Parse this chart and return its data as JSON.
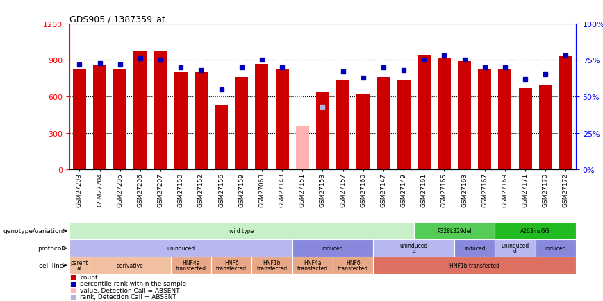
{
  "title": "GDS905 / 1387359_at",
  "samples": [
    "GSM27203",
    "GSM27204",
    "GSM27205",
    "GSM27206",
    "GSM27207",
    "GSM27150",
    "GSM27152",
    "GSM27156",
    "GSM27159",
    "GSM27063",
    "GSM27148",
    "GSM27151",
    "GSM27153",
    "GSM27157",
    "GSM27160",
    "GSM27147",
    "GSM27149",
    "GSM27161",
    "GSM27165",
    "GSM27163",
    "GSM27167",
    "GSM27169",
    "GSM27171",
    "GSM27170",
    "GSM27172"
  ],
  "count_values": [
    820,
    860,
    820,
    970,
    970,
    800,
    800,
    530,
    760,
    870,
    820,
    360,
    640,
    740,
    620,
    760,
    730,
    940,
    920,
    890,
    820,
    820,
    670,
    700,
    930
  ],
  "rank_values": [
    72,
    73,
    72,
    76,
    75,
    70,
    68,
    55,
    70,
    75,
    70,
    null,
    null,
    67,
    63,
    70,
    68,
    75,
    78,
    75,
    70,
    70,
    62,
    65,
    78
  ],
  "absent_count": [
    null,
    null,
    null,
    null,
    null,
    null,
    null,
    null,
    null,
    null,
    null,
    360,
    null,
    null,
    null,
    null,
    null,
    null,
    null,
    null,
    null,
    null,
    null,
    null,
    null
  ],
  "absent_rank": [
    null,
    null,
    null,
    null,
    null,
    null,
    null,
    null,
    null,
    null,
    null,
    null,
    43,
    null,
    null,
    null,
    null,
    null,
    null,
    null,
    null,
    null,
    null,
    null,
    null
  ],
  "ylim_left": [
    0,
    1200
  ],
  "ylim_right": [
    0,
    100
  ],
  "yticks_left": [
    0,
    300,
    600,
    900,
    1200
  ],
  "yticks_right": [
    0,
    25,
    50,
    75,
    100
  ],
  "ytick_labels_left": [
    "0",
    "300",
    "600",
    "900",
    "1200"
  ],
  "ytick_labels_right": [
    "0%",
    "25%",
    "50%",
    "75%",
    "100%"
  ],
  "bar_color": "#cc0000",
  "rank_color": "#0000bb",
  "absent_bar_color": "#ffb3b3",
  "absent_rank_color": "#b3b3dd",
  "plot_bg": "#ffffff",
  "genotype_row": [
    {
      "label": "wild type",
      "start": 0,
      "end": 17,
      "color": "#c8f0c8"
    },
    {
      "label": "P328L329del",
      "start": 17,
      "end": 21,
      "color": "#55cc55"
    },
    {
      "label": "A263insGG",
      "start": 21,
      "end": 25,
      "color": "#22bb22"
    }
  ],
  "protocol_row": [
    {
      "label": "uninduced",
      "start": 0,
      "end": 11,
      "color": "#b8b8f0"
    },
    {
      "label": "induced",
      "start": 11,
      "end": 15,
      "color": "#8888dd"
    },
    {
      "label": "uninduced\nd",
      "start": 15,
      "end": 19,
      "color": "#b8b8f0"
    },
    {
      "label": "induced",
      "start": 19,
      "end": 21,
      "color": "#8888dd"
    },
    {
      "label": "uninduced\nd",
      "start": 21,
      "end": 23,
      "color": "#b8b8f0"
    },
    {
      "label": "induced",
      "start": 23,
      "end": 25,
      "color": "#8888dd"
    }
  ],
  "cell_row": [
    {
      "label": "parent\nal",
      "start": 0,
      "end": 1,
      "color": "#f0c0a0"
    },
    {
      "label": "derivative",
      "start": 1,
      "end": 5,
      "color": "#f0c0a0"
    },
    {
      "label": "HNF4a\ntransfected",
      "start": 5,
      "end": 7,
      "color": "#e8a888"
    },
    {
      "label": "HNF6\ntransfected",
      "start": 7,
      "end": 9,
      "color": "#e8a888"
    },
    {
      "label": "HNF1b\ntransfected",
      "start": 9,
      "end": 11,
      "color": "#e8a888"
    },
    {
      "label": "HNF4a\ntransfected",
      "start": 11,
      "end": 13,
      "color": "#e8a888"
    },
    {
      "label": "HNF6\ntransfected",
      "start": 13,
      "end": 15,
      "color": "#e8a888"
    },
    {
      "label": "HNF1b transfected",
      "start": 15,
      "end": 25,
      "color": "#dd7060"
    }
  ],
  "legend_items": [
    {
      "color": "#cc0000",
      "label": "count"
    },
    {
      "color": "#0000bb",
      "label": "percentile rank within the sample"
    },
    {
      "color": "#ffb3b3",
      "label": "value, Detection Call = ABSENT"
    },
    {
      "color": "#b3b3dd",
      "label": "rank, Detection Call = ABSENT"
    }
  ]
}
